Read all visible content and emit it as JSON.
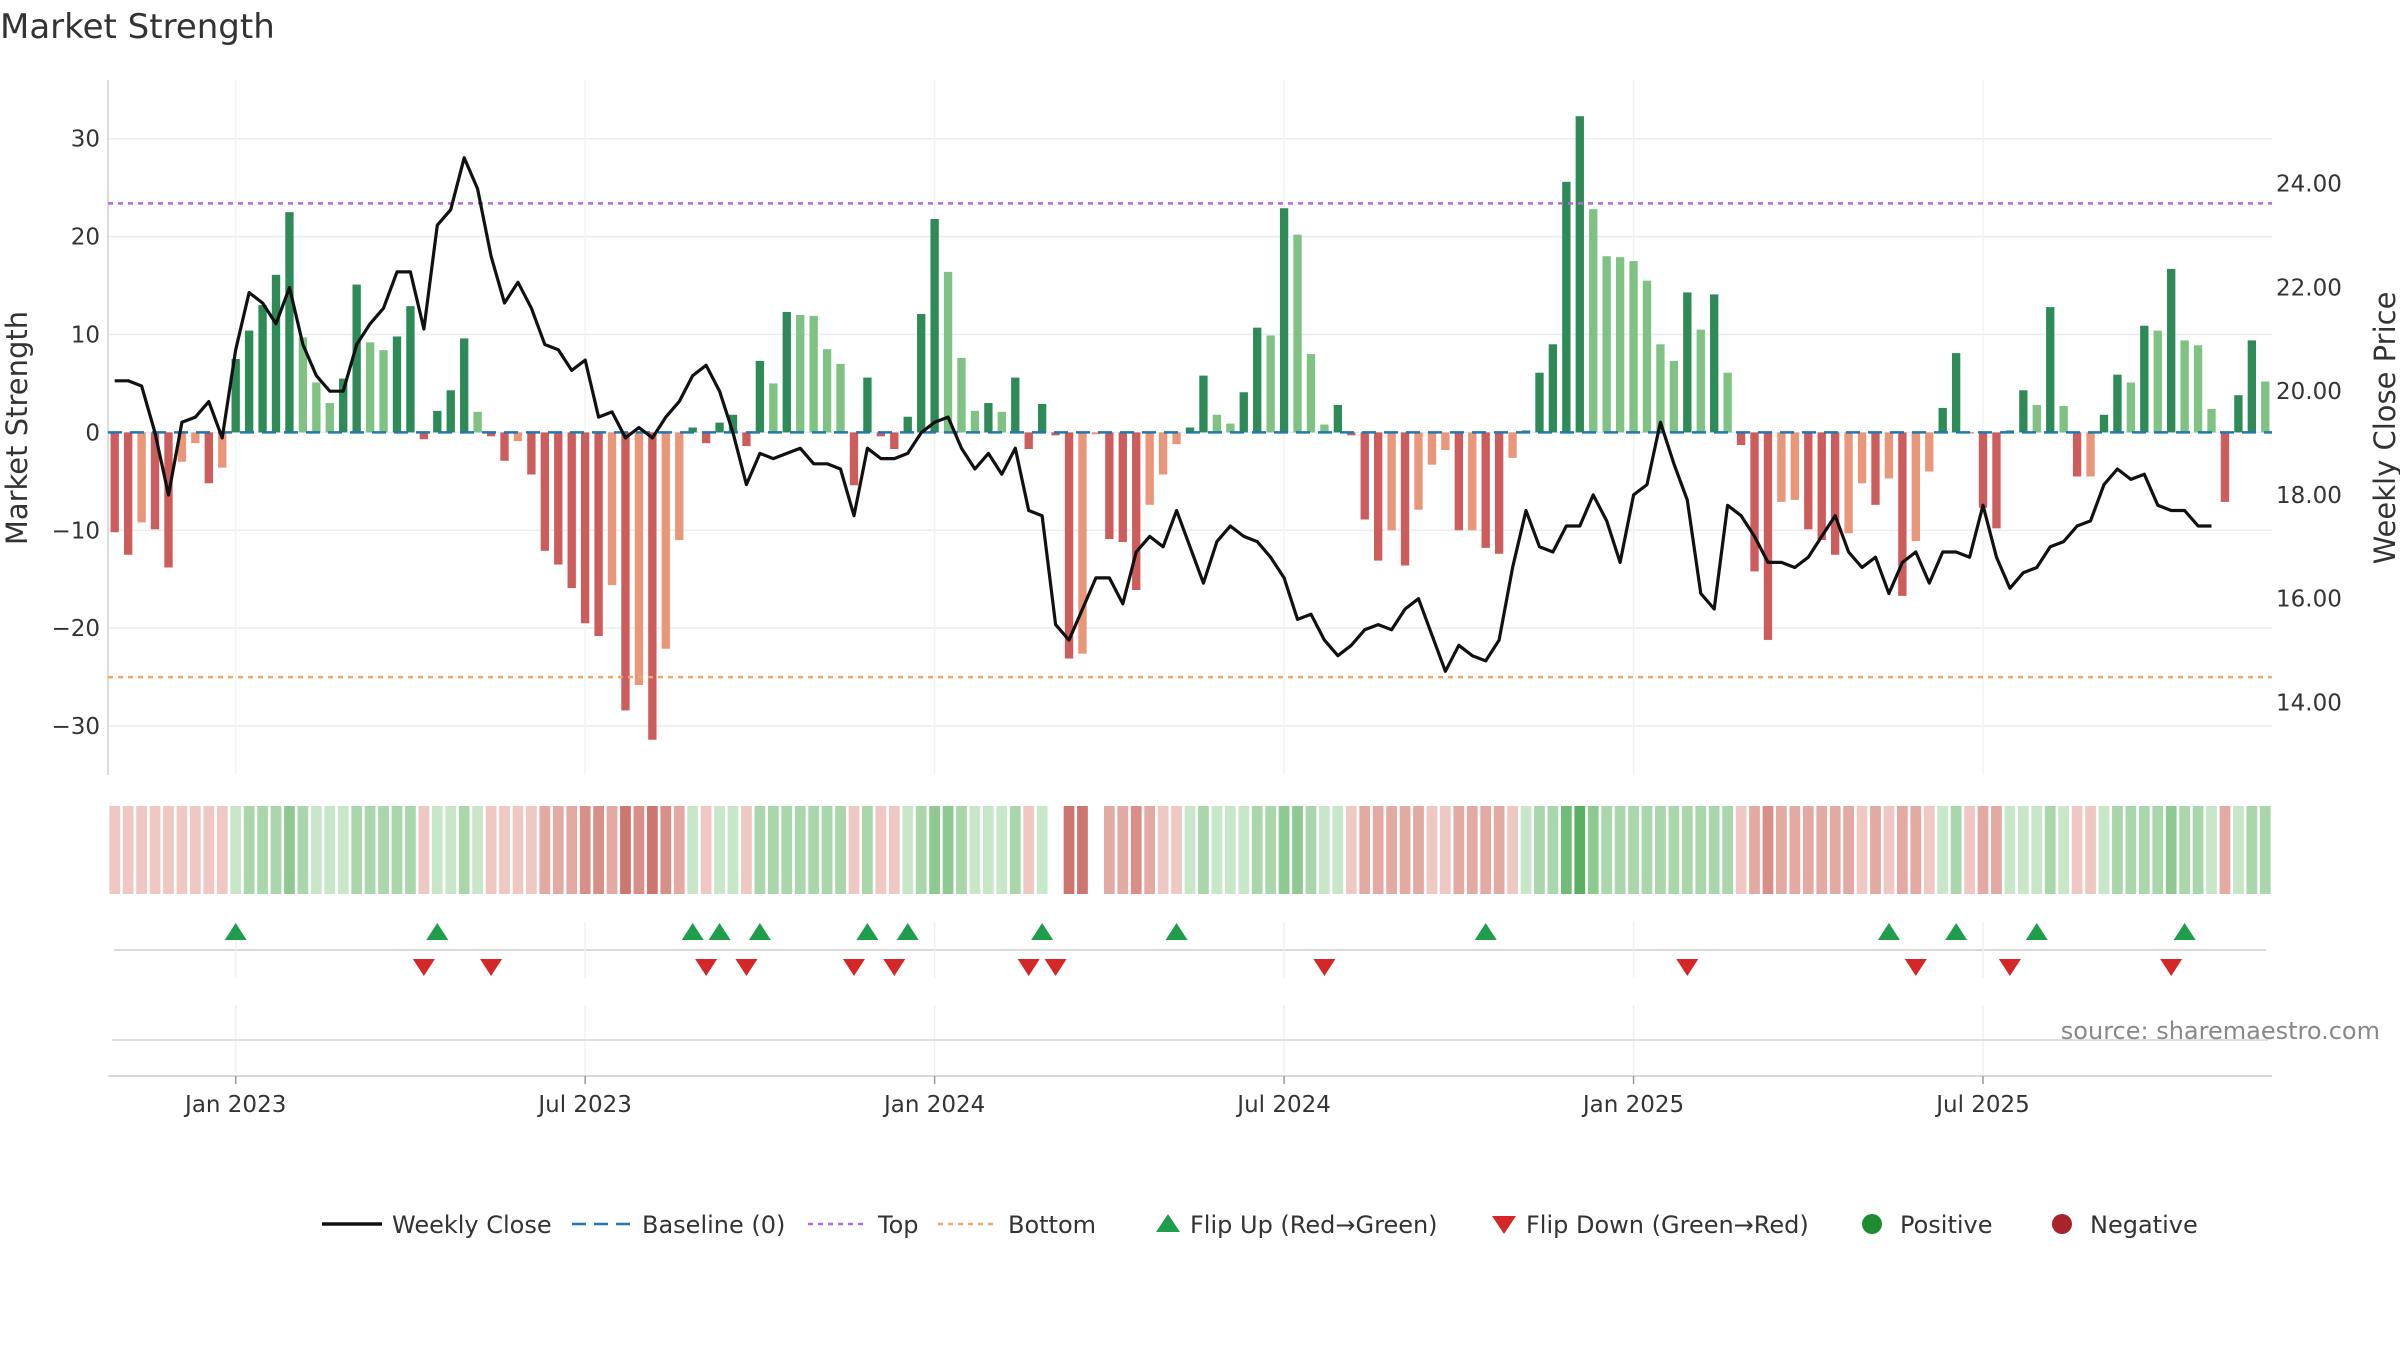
{
  "chart_data": {
    "type": "bar+line",
    "title": "Market Strength",
    "ylabel_left": "Market Strength",
    "ylabel_right": "Weekly Close Price",
    "source": "source: sharemaestro.com",
    "y_left": {
      "range": [
        -35,
        36
      ],
      "ticks": [
        30,
        20,
        10,
        0,
        -10,
        -20,
        -30
      ],
      "tick_labels": [
        "30",
        "20",
        "10",
        "0",
        "−10",
        "−20",
        "−30"
      ]
    },
    "y_right": {
      "range": [
        12.6,
        26.0
      ],
      "ticks": [
        24,
        22,
        20,
        18,
        16,
        14
      ],
      "tick_labels": [
        "24.00",
        "22.00",
        "20.00",
        "18.00",
        "16.00",
        "14.00"
      ]
    },
    "x_ticks": {
      "labels": [
        "Jan 2023",
        "Jul 2023",
        "Jan 2024",
        "Jul 2024",
        "Jan 2025",
        "Jul 2025"
      ],
      "weeks": [
        9.5,
        35.5,
        61.5,
        87.5,
        113.5,
        139.5
      ]
    },
    "top_line": 23.4,
    "bottom_line": -25.0,
    "baseline": 0,
    "series": {
      "market_strength": [
        -10.2,
        -12.5,
        -9.2,
        -9.9,
        -13.8,
        -3.0,
        -1.1,
        -5.2,
        -3.6,
        7.5,
        10.4,
        13.0,
        16.1,
        22.5,
        9.7,
        5.1,
        3.0,
        5.5,
        15.1,
        9.2,
        8.4,
        9.8,
        12.9,
        -0.7,
        2.2,
        4.3,
        9.6,
        2.1,
        -0.4,
        -2.9,
        -0.9,
        -4.3,
        -12.1,
        -13.5,
        -15.9,
        -19.5,
        -20.8,
        -15.6,
        -28.4,
        -25.8,
        -31.4,
        -22.1,
        -11.0,
        0.5,
        -1.1,
        1.0,
        1.8,
        -1.4,
        7.3,
        5.0,
        12.3,
        12.0,
        11.9,
        8.5,
        7.0,
        -5.4,
        5.6,
        -0.4,
        -1.7,
        1.6,
        12.1,
        21.8,
        16.4,
        7.6,
        2.2,
        3.0,
        2.1,
        5.6,
        -1.7,
        2.9,
        -0.3,
        -23.1,
        -22.6,
        -0.2,
        -10.9,
        -11.2,
        -16.1,
        -7.4,
        -4.3,
        -1.2,
        0.5,
        5.8,
        1.8,
        0.9,
        4.1,
        10.7,
        9.9,
        22.9,
        20.2,
        8.0,
        0.8,
        2.8,
        -0.3,
        -8.9,
        -13.1,
        -10.0,
        -13.6,
        -7.9,
        -3.3,
        -1.8,
        -10.0,
        -10.0,
        -11.8,
        -12.4,
        -2.6,
        0.2,
        6.1,
        9.0,
        25.6,
        32.3,
        22.8,
        18.0,
        17.9,
        17.5,
        15.5,
        9.0,
        7.3,
        14.3,
        10.5,
        14.1,
        6.1,
        -1.3,
        -14.2,
        -21.2,
        -7.1,
        -6.9,
        -9.9,
        -11.0,
        -12.5,
        -10.3,
        -5.2,
        -7.4,
        -4.7,
        -16.7,
        -11.1,
        -4.0,
        2.5,
        8.1,
        -0.1,
        -7.7,
        -9.8,
        0.2,
        4.3,
        2.8,
        12.8,
        2.7,
        -4.5,
        -4.5,
        1.8,
        5.9,
        5.1,
        10.9,
        10.4,
        16.7,
        9.4,
        8.9,
        2.4,
        -7.1,
        3.8,
        9.4,
        5.2
      ],
      "weekly_close": [
        20.2,
        20.2,
        20.1,
        19.2,
        18.0,
        19.4,
        19.5,
        19.8,
        19.1,
        20.8,
        21.9,
        21.7,
        21.3,
        22.0,
        20.9,
        20.3,
        20.0,
        20.0,
        20.9,
        21.3,
        21.6,
        22.3,
        22.3,
        21.2,
        23.2,
        23.5,
        24.5,
        23.9,
        22.6,
        21.7,
        22.1,
        21.6,
        20.9,
        20.8,
        20.4,
        20.6,
        19.5,
        19.6,
        19.1,
        19.3,
        19.1,
        19.5,
        19.8,
        20.3,
        20.5,
        20.0,
        19.2,
        18.2,
        18.8,
        18.7,
        18.8,
        18.9,
        18.6,
        18.6,
        18.5,
        17.6,
        18.9,
        18.7,
        18.7,
        18.8,
        19.2,
        19.4,
        19.5,
        18.9,
        18.5,
        18.8,
        18.4,
        18.9,
        17.7,
        17.6,
        15.5,
        15.2,
        15.8,
        16.4,
        16.4,
        15.9,
        16.9,
        17.2,
        17.0,
        17.7,
        17.0,
        16.3,
        17.1,
        17.4,
        17.2,
        17.1,
        16.8,
        16.4,
        15.6,
        15.7,
        15.2,
        14.9,
        15.1,
        15.4,
        15.5,
        15.4,
        15.8,
        16.0,
        15.3,
        14.6,
        15.1,
        14.9,
        14.8,
        15.2,
        16.6,
        17.7,
        17.0,
        16.9,
        17.4,
        17.4,
        18.0,
        17.5,
        16.7,
        18.0,
        18.2,
        19.4,
        18.6,
        17.9,
        16.1,
        15.8,
        17.8,
        17.6,
        17.2,
        16.7,
        16.7,
        16.6,
        16.8,
        17.2,
        17.6,
        16.9,
        16.6,
        16.8,
        16.1,
        16.7,
        16.9,
        16.3,
        16.9,
        16.9,
        16.8,
        17.8,
        16.8,
        16.2,
        16.5,
        16.6,
        17.0,
        17.1,
        17.4,
        17.5,
        18.2,
        18.5,
        18.3,
        18.4,
        17.8,
        17.7,
        17.7,
        17.4,
        17.4
      ]
    },
    "strength_strip": {
      "colors": [
        "#efc8c4",
        "#efc8c4",
        "#efc8c4",
        "#efc8c4",
        "#efc8c4",
        "#efc8c4",
        "#efc8c4",
        "#efc8c4",
        "#efc8c4",
        "#c8e6c8",
        "#aad6ab",
        "#aad6ab",
        "#aad6ab",
        "#8fc992",
        "#aad6ab",
        "#c8e6c8",
        "#c8e6c8",
        "#c8e6c8",
        "#aad6ab",
        "#aad6ab",
        "#aad6ab",
        "#aad6ab",
        "#aad6ab",
        "#efc8c4",
        "#c8e6c8",
        "#c8e6c8",
        "#aad6ab",
        "#c8e6c8",
        "#efc8c4",
        "#efc8c4",
        "#efc8c4",
        "#efc8c4",
        "#e3a9a3",
        "#e3a9a3",
        "#e3a9a3",
        "#d88f88",
        "#d88f88",
        "#e3a9a3",
        "#cd7670",
        "#d88f88",
        "#cd7670",
        "#d88f88",
        "#e3a9a3",
        "#c8e6c8",
        "#efc8c4",
        "#c8e6c8",
        "#c8e6c8",
        "#efc8c4",
        "#aad6ab",
        "#aad6ab",
        "#aad6ab",
        "#aad6ab",
        "#aad6ab",
        "#aad6ab",
        "#aad6ab",
        "#efc8c4",
        "#aad6ab",
        "#efc8c4",
        "#efc8c4",
        "#c8e6c8",
        "#aad6ab",
        "#8fc992",
        "#8fc992",
        "#aad6ab",
        "#c8e6c8",
        "#c8e6c8",
        "#c8e6c8",
        "#aad6ab",
        "#efc8c4",
        "#c8e6c8",
        "#ffffff",
        "#cd7670",
        "#cd7670",
        "#ffffff",
        "#e3a9a3",
        "#e3a9a3",
        "#d88f88",
        "#e3a9a3",
        "#efc8c4",
        "#efc8c4",
        "#c8e6c8",
        "#aad6ab",
        "#c8e6c8",
        "#c8e6c8",
        "#c8e6c8",
        "#aad6ab",
        "#aad6ab",
        "#8fc992",
        "#8fc992",
        "#aad6ab",
        "#c8e6c8",
        "#c8e6c8",
        "#efc8c4",
        "#e3a9a3",
        "#e3a9a3",
        "#e3a9a3",
        "#e3a9a3",
        "#e3a9a3",
        "#efc8c4",
        "#efc8c4",
        "#e3a9a3",
        "#e3a9a3",
        "#e3a9a3",
        "#e3a9a3",
        "#efc8c4",
        "#c8e6c8",
        "#aad6ab",
        "#aad6ab",
        "#72bb78",
        "#5aae62",
        "#8fc992",
        "#aad6ab",
        "#aad6ab",
        "#aad6ab",
        "#aad6ab",
        "#aad6ab",
        "#aad6ab",
        "#aad6ab",
        "#aad6ab",
        "#aad6ab",
        "#aad6ab",
        "#efc8c4",
        "#e3a9a3",
        "#d88f88",
        "#e3a9a3",
        "#e3a9a3",
        "#e3a9a3",
        "#e3a9a3",
        "#e3a9a3",
        "#e3a9a3",
        "#efc8c4",
        "#e3a9a3",
        "#efc8c4",
        "#e3a9a3",
        "#e3a9a3",
        "#efc8c4",
        "#c8e6c8",
        "#aad6ab",
        "#efc8c4",
        "#e3a9a3",
        "#e3a9a3",
        "#c8e6c8",
        "#c8e6c8",
        "#c8e6c8",
        "#aad6ab",
        "#c8e6c8",
        "#efc8c4",
        "#efc8c4",
        "#c8e6c8",
        "#aad6ab",
        "#aad6ab",
        "#aad6ab",
        "#aad6ab",
        "#8fc992",
        "#aad6ab",
        "#aad6ab",
        "#c8e6c8",
        "#e3a9a3",
        "#c8e6c8",
        "#aad6ab",
        "#aad6ab"
      ]
    },
    "flip_up_weeks": [
      9,
      24,
      43,
      45,
      48,
      56,
      59,
      69,
      79,
      102,
      132,
      137,
      143,
      154
    ],
    "flip_down_weeks": [
      23,
      28,
      44,
      47,
      55,
      58,
      68,
      70,
      90,
      117,
      134,
      141,
      153
    ],
    "legend": [
      {
        "label": "Weekly Close",
        "kind": "line",
        "color": "#111111"
      },
      {
        "label": "Baseline (0)",
        "kind": "dashed",
        "color": "#1f77b4"
      },
      {
        "label": "Top",
        "kind": "dotted",
        "color": "#b36ae2"
      },
      {
        "label": "Bottom",
        "kind": "dotted",
        "color": "#f0a868"
      },
      {
        "label": "Flip Up (Red→Green)",
        "kind": "triangle-up",
        "color": "#1e9e4a"
      },
      {
        "label": "Flip Down (Green→Red)",
        "kind": "triangle-down",
        "color": "#d62728"
      },
      {
        "label": "Positive",
        "kind": "circle",
        "color": "#1e8c30"
      },
      {
        "label": "Negative",
        "kind": "circle",
        "color": "#a8232a"
      }
    ],
    "colors": {
      "pos_dark": "#2e8b57",
      "pos_light": "#7fc283",
      "neg_dark": "#cd5c5c",
      "neg_light": "#e9967a",
      "baseline": "#1f77b4",
      "top": "#b36ae2",
      "bottom": "#f0a868",
      "close": "#111111"
    }
  }
}
